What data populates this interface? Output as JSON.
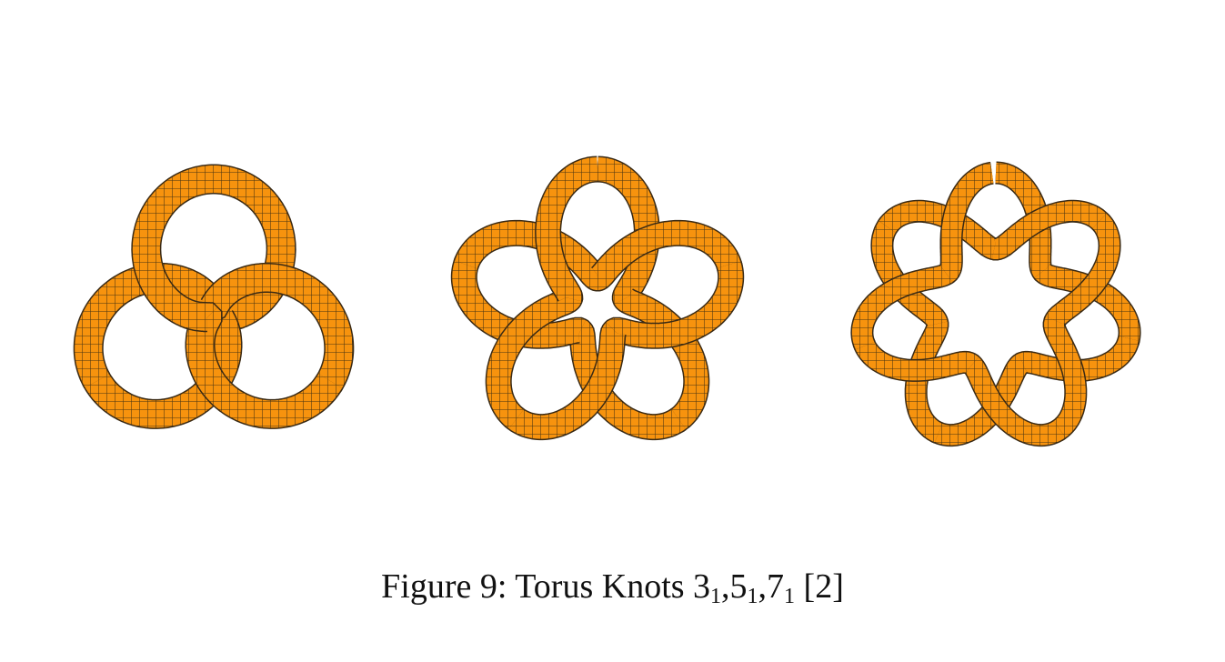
{
  "figure": {
    "label": "Figure 9:",
    "title": "Torus Knots",
    "knots": [
      {
        "crossings": "3",
        "index": "1",
        "sep": ","
      },
      {
        "crossings": "5",
        "index": "1",
        "sep": ","
      },
      {
        "crossings": "7",
        "index": "1",
        "sep": ""
      }
    ],
    "citation": "[2]"
  },
  "colors": {
    "tube_fill": "#F7930E",
    "tube_outline": "#3A2A14",
    "mesh_line": "#4A3412"
  }
}
